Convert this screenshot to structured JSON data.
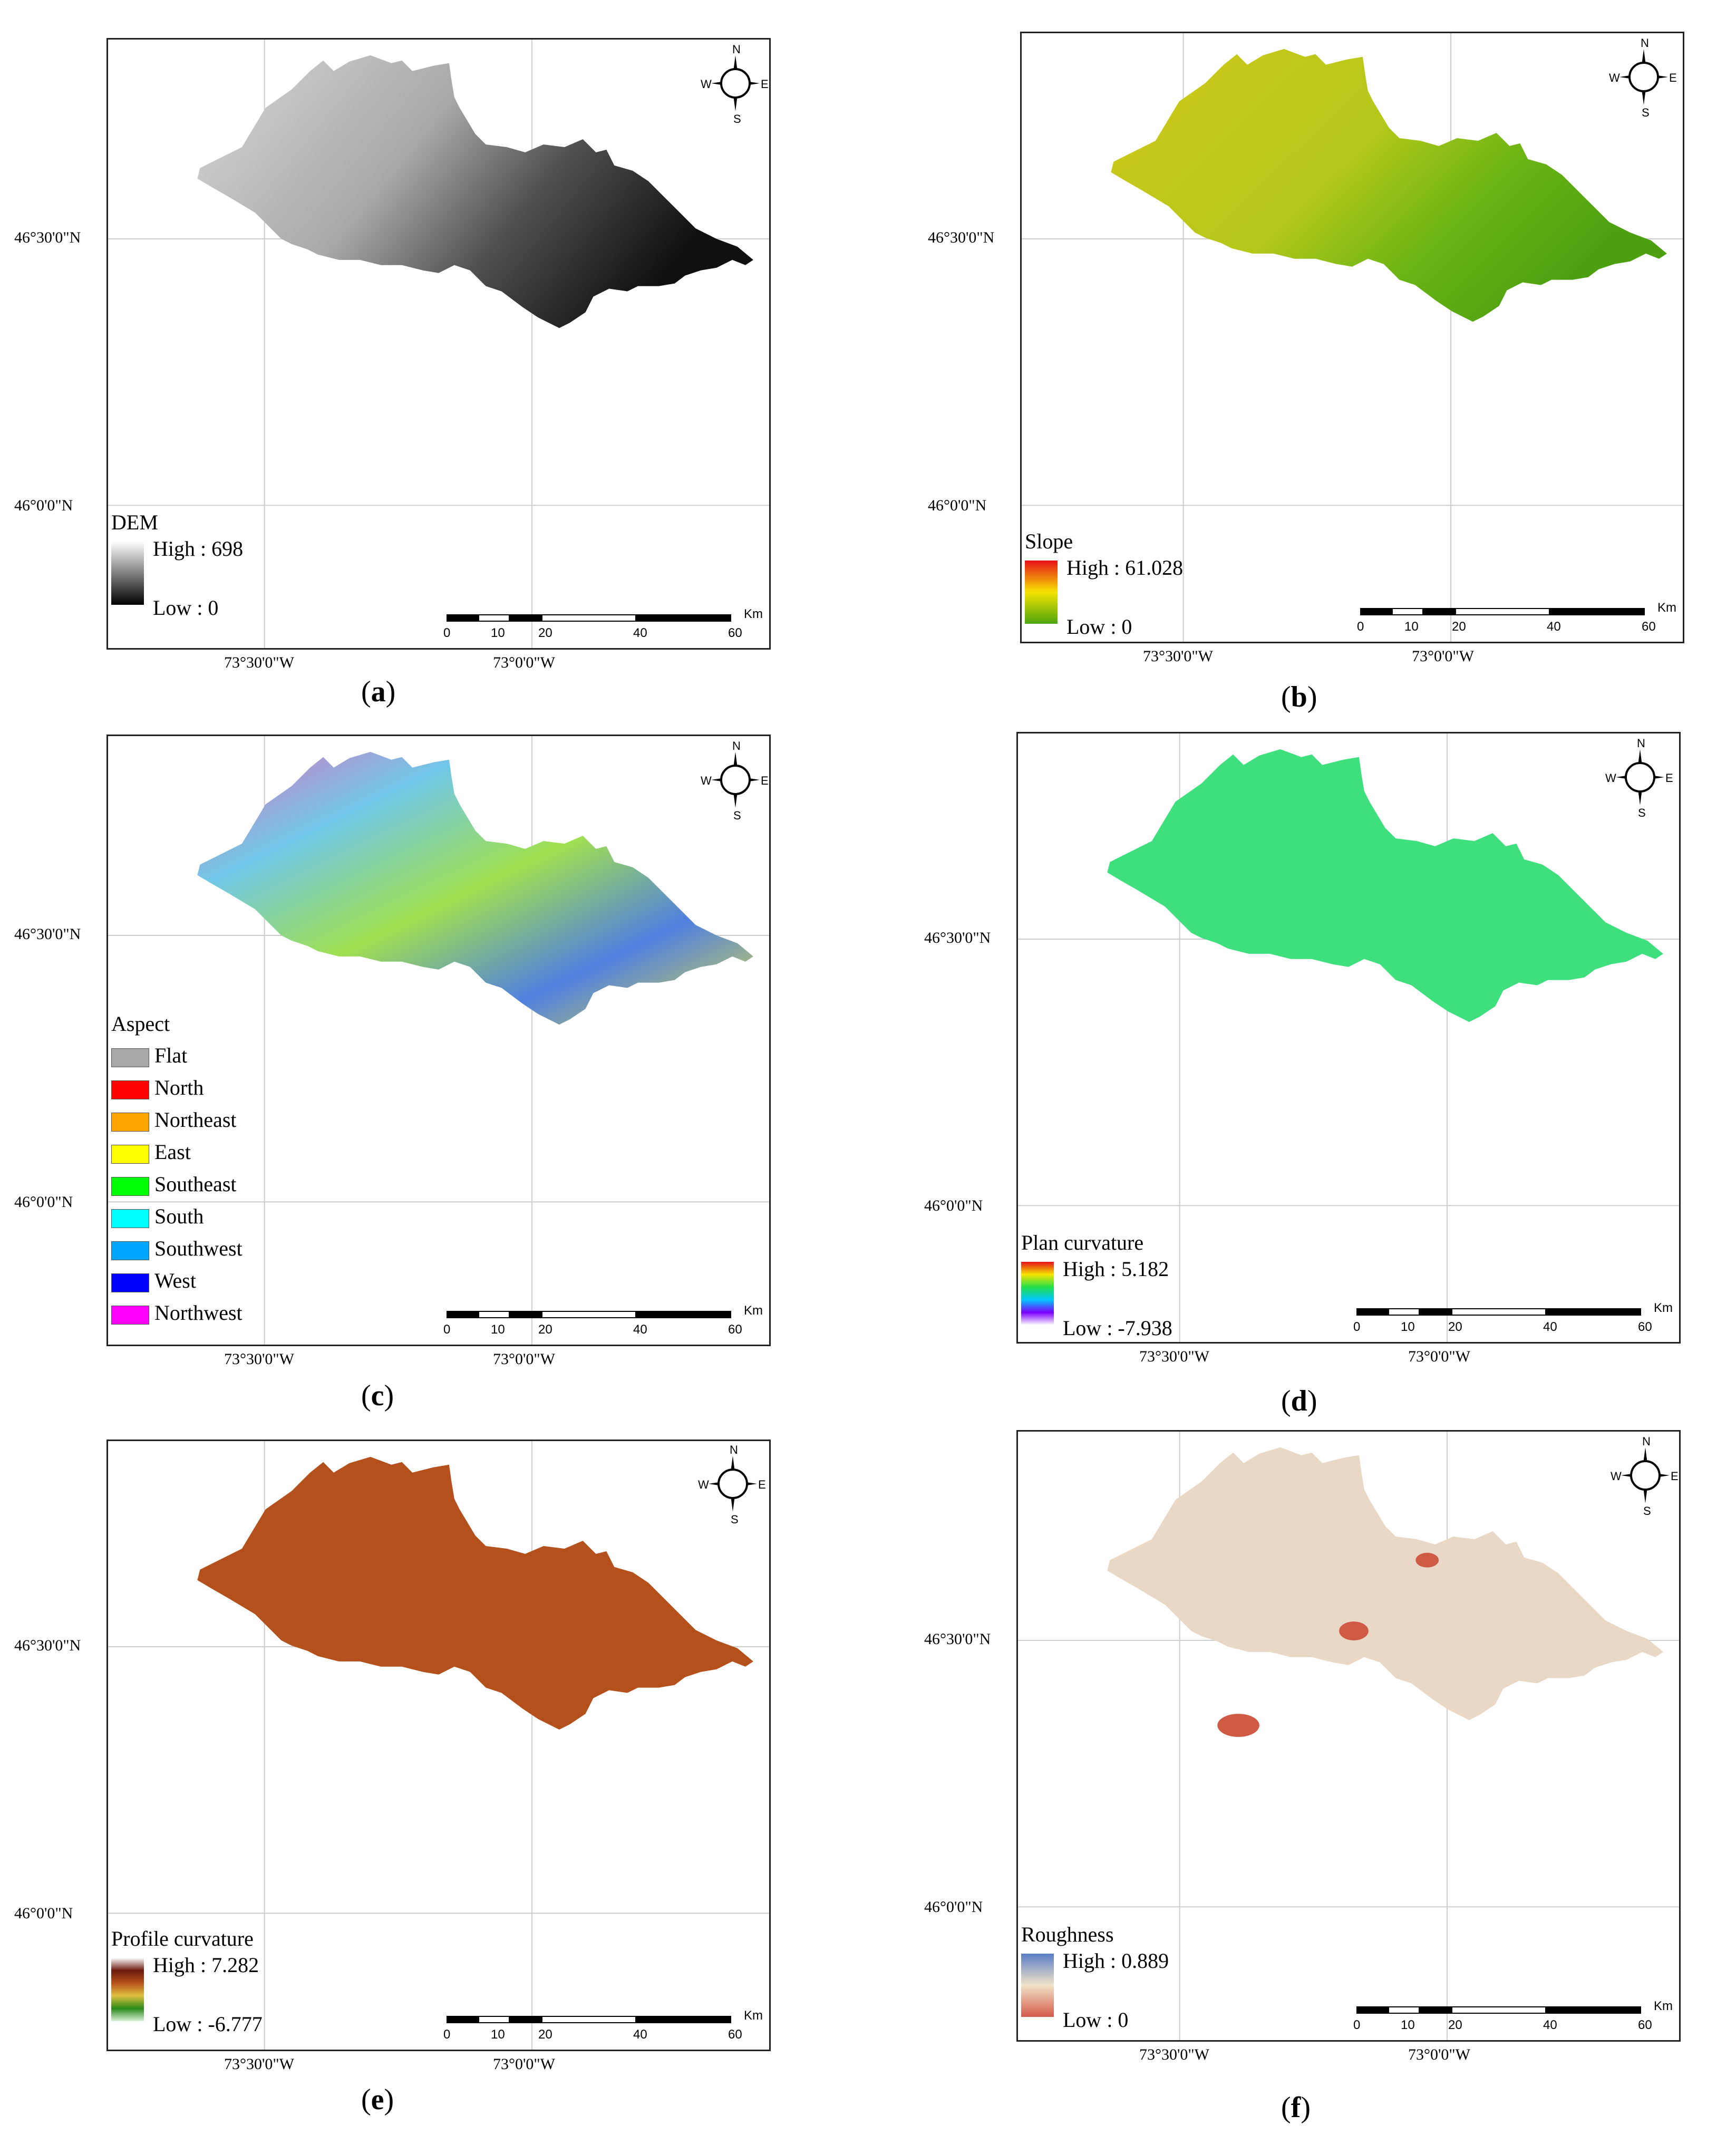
{
  "coords": {
    "lat_top": "46°30'0\"N",
    "lat_bottom": "46°0'0\"N",
    "lon_left": "73°30'0\"W",
    "lon_right": "73°0'0\"W"
  },
  "compass": {
    "n": "N",
    "s": "S",
    "e": "E",
    "w": "W"
  },
  "scale": {
    "ticks": [
      "0",
      "10",
      "20",
      "40",
      "60"
    ],
    "unit": "Km"
  },
  "panels": {
    "a": {
      "caption_open": "(",
      "caption_letter": "a",
      "caption_close": ")",
      "legend_title": "DEM",
      "high": "High : 698",
      "low": "Low : 0",
      "ramp": [
        "#ffffff",
        "#000000"
      ]
    },
    "b": {
      "caption_open": "(",
      "caption_letter": "b",
      "caption_close": ")",
      "legend_title": "Slope",
      "high": "High : 61.028",
      "low": "Low : 0",
      "ramp": [
        "#e8101a",
        "#f5e400",
        "#4da50f"
      ]
    },
    "c": {
      "caption_open": "(",
      "caption_letter": "c",
      "caption_close": ")",
      "legend_title": "Aspect",
      "classes": [
        {
          "label": "Flat",
          "color": "#a8a8a8"
        },
        {
          "label": "North",
          "color": "#ff0000"
        },
        {
          "label": "Northeast",
          "color": "#ffa500"
        },
        {
          "label": "East",
          "color": "#ffff00"
        },
        {
          "label": "Southeast",
          "color": "#00ff00"
        },
        {
          "label": "South",
          "color": "#00ffff"
        },
        {
          "label": "Southwest",
          "color": "#00a5ff"
        },
        {
          "label": "West",
          "color": "#0000ff"
        },
        {
          "label": "Northwest",
          "color": "#ff00ff"
        }
      ]
    },
    "d": {
      "caption_open": "(",
      "caption_letter": "d",
      "caption_close": ")",
      "legend_title": "Plan curvature",
      "high": "High : 5.182",
      "low": "Low : -7.938",
      "ramp": [
        "#e8101a",
        "#f5e400",
        "#22e04a",
        "#00c8ff",
        "#7a00ff",
        "#ffffff"
      ]
    },
    "e": {
      "caption_open": "(",
      "caption_letter": "e",
      "caption_close": ")",
      "legend_title": "Profile curvature",
      "high": "High : 7.282",
      "low": "Low : -6.777",
      "ramp": [
        "#ffffff",
        "#6b1a0c",
        "#b8521a",
        "#e0c040",
        "#2a8a1a",
        "#d8f0d8"
      ]
    },
    "f": {
      "caption_open": "(",
      "caption_letter": "f",
      "caption_close": ")",
      "legend_title": "Roughness",
      "high": "High : 0.889",
      "low": "Low : 0",
      "ramp": [
        "#5a7fc8",
        "#f2e2c8",
        "#d45a4a"
      ]
    }
  },
  "map_fills": {
    "a": [
      "#d0d0d0",
      "#404040"
    ],
    "b": [
      "#c8d020",
      "#52a014"
    ],
    "c": [
      "#7ab8e0"
    ],
    "d": [
      "#40e080"
    ],
    "e": [
      "#b8501a"
    ],
    "f": [
      "#eadcc8"
    ]
  }
}
